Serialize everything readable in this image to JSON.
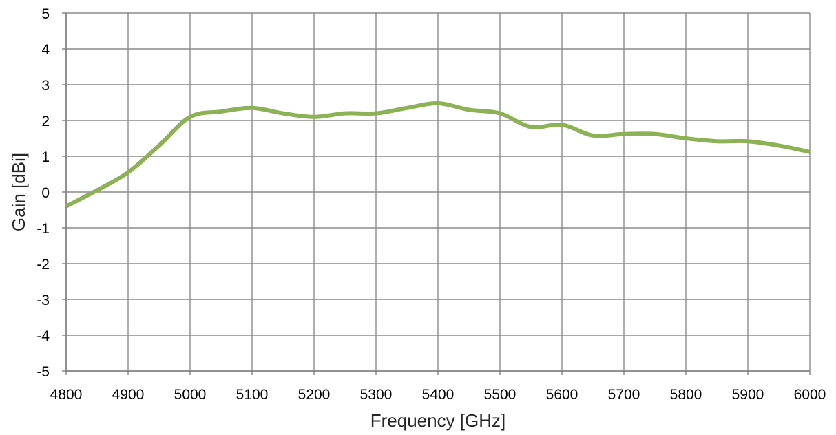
{
  "chart_data": {
    "type": "line",
    "title": "",
    "xlabel": "Frequency [GHz]",
    "ylabel": "Gain [dBi]",
    "xlim": [
      4800,
      6000
    ],
    "ylim": [
      -5,
      5
    ],
    "xticks": [
      4800,
      4900,
      5000,
      5100,
      5200,
      5300,
      5400,
      5500,
      5600,
      5700,
      5800,
      5900,
      6000
    ],
    "yticks": [
      -5,
      -4,
      -3,
      -2,
      -1,
      0,
      1,
      2,
      3,
      4,
      5
    ],
    "grid": true,
    "legend": "none",
    "series": [
      {
        "color": "#8DB255",
        "x": [
          4800,
          4850,
          4900,
          4950,
          5000,
          5050,
          5100,
          5150,
          5200,
          5250,
          5300,
          5350,
          5400,
          5450,
          5500,
          5550,
          5600,
          5650,
          5700,
          5750,
          5800,
          5850,
          5900,
          5950,
          6000
        ],
        "y": [
          -0.4,
          0.05,
          0.55,
          1.3,
          2.1,
          2.25,
          2.35,
          2.2,
          2.1,
          2.2,
          2.2,
          2.35,
          2.48,
          2.3,
          2.2,
          1.82,
          1.88,
          1.58,
          1.62,
          1.62,
          1.5,
          1.42,
          1.42,
          1.3,
          1.12
        ]
      }
    ]
  },
  "colors": {
    "line": "#8DB255",
    "grid": "#8C8C8C",
    "axis": "#808080",
    "background": "#FFFFFF"
  }
}
